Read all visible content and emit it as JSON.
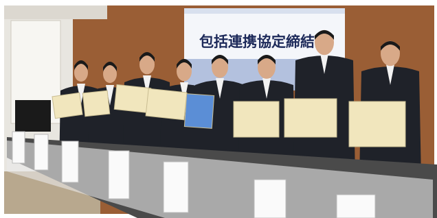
{
  "banner": {
    "title": "包括連携協定締結式"
  }
}
